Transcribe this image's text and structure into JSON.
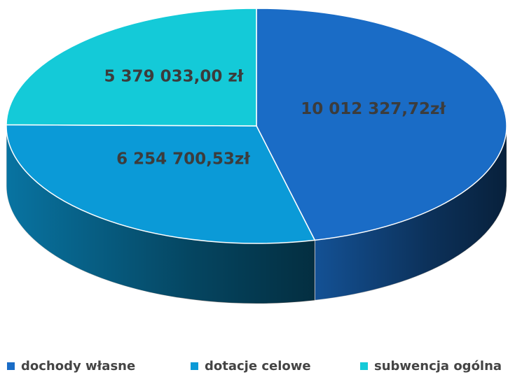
{
  "chart_data": {
    "type": "pie",
    "categories": [
      "dochody własne",
      "dotacje celowe",
      "subwencja ogólna"
    ],
    "values": [
      10012327.72,
      6254700.53,
      5379033.0
    ],
    "value_labels": [
      "10 012 327,72zł",
      "6 254 700,53zł",
      "5 379 033,00 zł"
    ],
    "colors": [
      "#1a6cc6",
      "#0b9ad7",
      "#14cad8"
    ],
    "legend": "bottom"
  }
}
